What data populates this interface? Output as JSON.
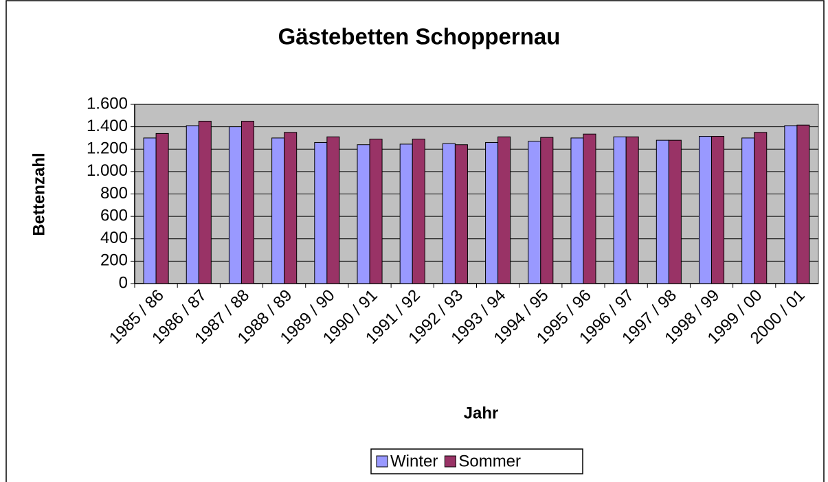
{
  "chart_data": {
    "type": "bar",
    "title": "Gästebetten Schoppernau",
    "xlabel": "Jahr",
    "ylabel": "Bettenzahl",
    "categories": [
      "1985 / 86",
      "1986 / 87",
      "1987 / 88",
      "1988 / 89",
      "1989 / 90",
      "1990 / 91",
      "1991 / 92",
      "1992 / 93",
      "1993 / 94",
      "1994 / 95",
      "1995 / 96",
      "1996 / 97",
      "1997 / 98",
      "1998 / 99",
      "1999 / 00",
      "2000 / 01"
    ],
    "series": [
      {
        "name": "Winter",
        "color": "#9999ff",
        "values": [
          1300,
          1410,
          1400,
          1300,
          1260,
          1240,
          1245,
          1250,
          1260,
          1270,
          1300,
          1310,
          1280,
          1315,
          1300,
          1410
        ]
      },
      {
        "name": "Sommer",
        "color": "#993366",
        "values": [
          1340,
          1450,
          1450,
          1350,
          1310,
          1290,
          1290,
          1240,
          1310,
          1305,
          1335,
          1310,
          1280,
          1315,
          1350,
          1415
        ]
      }
    ],
    "ylim": [
      0,
      1600
    ],
    "yticks": [
      0,
      200,
      400,
      600,
      800,
      {
        "value": 1000,
        "label": "1.000"
      },
      {
        "value": 1200,
        "label": "1.200"
      },
      {
        "value": 1400,
        "label": "1.400"
      },
      {
        "value": 1600,
        "label": "1.600"
      }
    ],
    "grid": true,
    "legend": "bottom"
  }
}
